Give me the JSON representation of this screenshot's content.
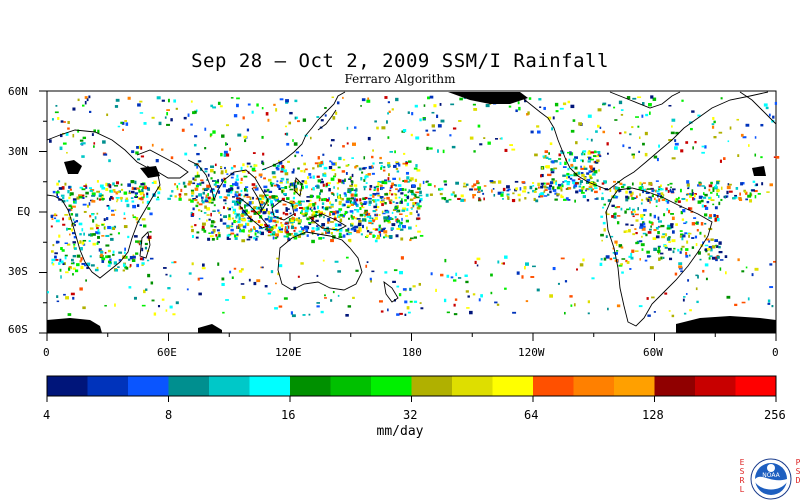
{
  "title": "Sep 28 – Oct 2, 2009 SSM/I Rainfall",
  "subtitle": "Ferraro Algorithm",
  "lat_labels": [
    "60N",
    "30N",
    "EQ",
    "30S",
    "60S"
  ],
  "lon_labels": [
    "0",
    "60E",
    "120E",
    "180",
    "120W",
    "60W",
    "0"
  ],
  "colorbar": {
    "units": "mm/day",
    "tick_labels": [
      "4",
      "8",
      "16",
      "32",
      "64",
      "128",
      "256"
    ],
    "colors": [
      "#00157a",
      "#0033bb",
      "#0a55ff",
      "#008f8f",
      "#00c8c8",
      "#00ffff",
      "#009000",
      "#00c000",
      "#00f000",
      "#b0b000",
      "#dede00",
      "#ffff00",
      "#ff5000",
      "#ff8000",
      "#ffa000",
      "#900000",
      "#c80000",
      "#ff0000"
    ]
  },
  "logos": {
    "left_letters": [
      "E",
      "S",
      "R",
      "L"
    ],
    "right_letters": [
      "P",
      "S",
      "D"
    ],
    "badge": "NOAA"
  }
}
